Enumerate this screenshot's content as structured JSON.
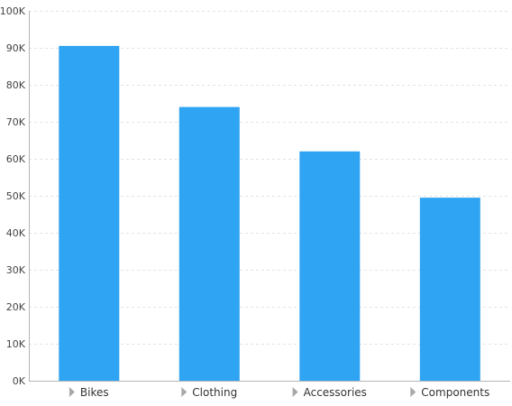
{
  "chart_data": {
    "type": "bar",
    "title": "",
    "xlabel": "",
    "ylabel": "",
    "categories": [
      "Bikes",
      "Clothing",
      "Accessories",
      "Components"
    ],
    "values": [
      90500,
      74000,
      62000,
      49500
    ],
    "ylim": [
      0,
      100000
    ],
    "y_ticks": [
      0,
      10000,
      20000,
      30000,
      40000,
      50000,
      60000,
      70000,
      80000,
      90000,
      100000
    ],
    "y_tick_labels": [
      "0K",
      "10K",
      "20K",
      "30K",
      "40K",
      "50K",
      "60K",
      "70K",
      "80K",
      "90K",
      "100K"
    ],
    "grid": true,
    "legend": "none",
    "bar_color": "#2fa4f3",
    "category_marker_icon": "expand-arrow-icon"
  }
}
